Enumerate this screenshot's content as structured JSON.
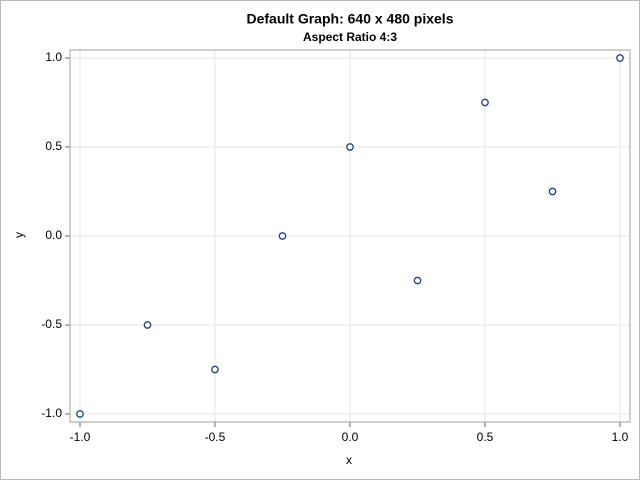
{
  "chart_data": {
    "type": "scatter",
    "title": "Default Graph: 640 x 480 pixels",
    "subtitle": "Aspect Ratio 4:3",
    "x_label": "x",
    "y_label": "y",
    "x": [
      -1,
      -0.75,
      -0.5,
      -0.25,
      0,
      0.25,
      0.5,
      0.75,
      1
    ],
    "values": [
      -1,
      -0.5,
      -0.75,
      0,
      0.5,
      -0.25,
      0.75,
      0.25,
      1
    ],
    "color": "#1f3f8f",
    "xlim": [
      -1.037,
      1.037
    ],
    "ylim": [
      -1.045,
      1.045
    ],
    "xticks": [
      {
        "value": -1,
        "label": "-1.0"
      },
      -0.5,
      {
        "value": 0,
        "label": "0.0"
      },
      0.5,
      {
        "value": 1,
        "label": "1.0"
      }
    ],
    "yticks": [
      {
        "value": -1,
        "label": "-1.0"
      },
      -0.5,
      {
        "value": 0,
        "label": "0.0"
      },
      0.5,
      {
        "value": 1,
        "label": "1.0"
      }
    ],
    "grid": true
  }
}
